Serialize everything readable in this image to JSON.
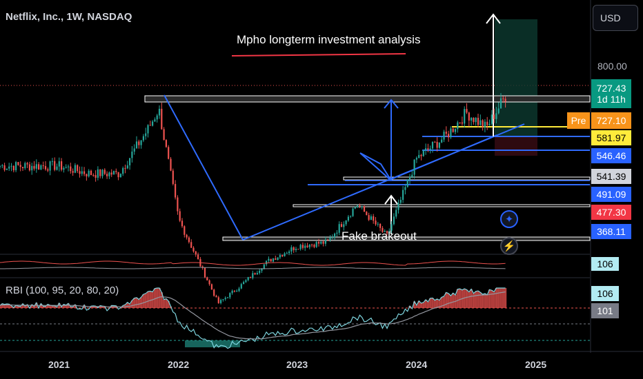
{
  "header": {
    "symbol": "Netflix, Inc., 1W, NASDAQ",
    "currency": "USD"
  },
  "annotations": {
    "title": "Mpho longterm investment analysis",
    "fakeout": "Fake brakeout"
  },
  "price_axis": {
    "top_label": "800.00",
    "tags": [
      {
        "value": "727.43",
        "sub": "1d 11h",
        "bg": "#089981",
        "fg": "#ffffff"
      },
      {
        "value": "727.10",
        "prefix": "Pre",
        "bg": "#f7931a",
        "fg": "#ffffff"
      },
      {
        "value": "581.97",
        "bg": "#ffeb3b",
        "fg": "#000000"
      },
      {
        "value": "546.46",
        "bg": "#2962ff",
        "fg": "#ffffff"
      },
      {
        "value": "541.39",
        "bg": "#d1d4dc",
        "fg": "#000000"
      },
      {
        "value": "491.09",
        "bg": "#2962ff",
        "fg": "#ffffff"
      },
      {
        "value": "477.30",
        "bg": "#f23645",
        "fg": "#ffffff"
      },
      {
        "value": "368.11",
        "bg": "#2962ff",
        "fg": "#ffffff"
      }
    ]
  },
  "indicator_top": {
    "value": "106",
    "bg": "#b2ebf2"
  },
  "indicator_rbi": {
    "label": "RBI (100, 95, 20, 80, 20)",
    "values": [
      {
        "value": "106",
        "bg": "#b2ebf2",
        "fg": "#000000"
      },
      {
        "value": "101",
        "bg": "#787b86",
        "fg": "#ffffff"
      }
    ]
  },
  "time_axis": {
    "ticks": [
      "2021",
      "2022",
      "2023",
      "2024",
      "2025"
    ]
  },
  "chart_data": {
    "type": "candlestick",
    "title": "Netflix, Inc., 1W, NASDAQ",
    "interval": "1W",
    "approx_close_path": [
      {
        "x": "2021-01",
        "y": 540
      },
      {
        "x": "2021-04",
        "y": 520
      },
      {
        "x": "2021-07",
        "y": 520
      },
      {
        "x": "2021-10",
        "y": 640
      },
      {
        "x": "2021-11",
        "y": 690
      },
      {
        "x": "2022-01",
        "y": 400
      },
      {
        "x": "2022-05",
        "y": 180
      },
      {
        "x": "2022-07",
        "y": 220
      },
      {
        "x": "2022-10",
        "y": 290
      },
      {
        "x": "2023-01",
        "y": 330
      },
      {
        "x": "2023-04",
        "y": 340
      },
      {
        "x": "2023-07",
        "y": 440
      },
      {
        "x": "2023-10",
        "y": 355
      },
      {
        "x": "2024-01",
        "y": 560
      },
      {
        "x": "2024-04",
        "y": 620
      },
      {
        "x": "2024-06",
        "y": 680
      },
      {
        "x": "2024-08",
        "y": 640
      },
      {
        "x": "2024-10",
        "y": 727
      }
    ],
    "current_price": 727.43,
    "premarket_price": 727.1,
    "horizontal_levels": [
      581.97,
      546.46,
      541.39,
      491.09,
      477.3,
      368.11
    ],
    "y_axis_top_label": 800.0,
    "x_ticks": [
      "2021",
      "2022",
      "2023",
      "2024",
      "2025"
    ],
    "grid": false
  },
  "colors": {
    "background": "#000000",
    "up": "#26a69a",
    "down": "#ef5350",
    "trend": "#2f6bff",
    "title_underline": "#f23645"
  }
}
